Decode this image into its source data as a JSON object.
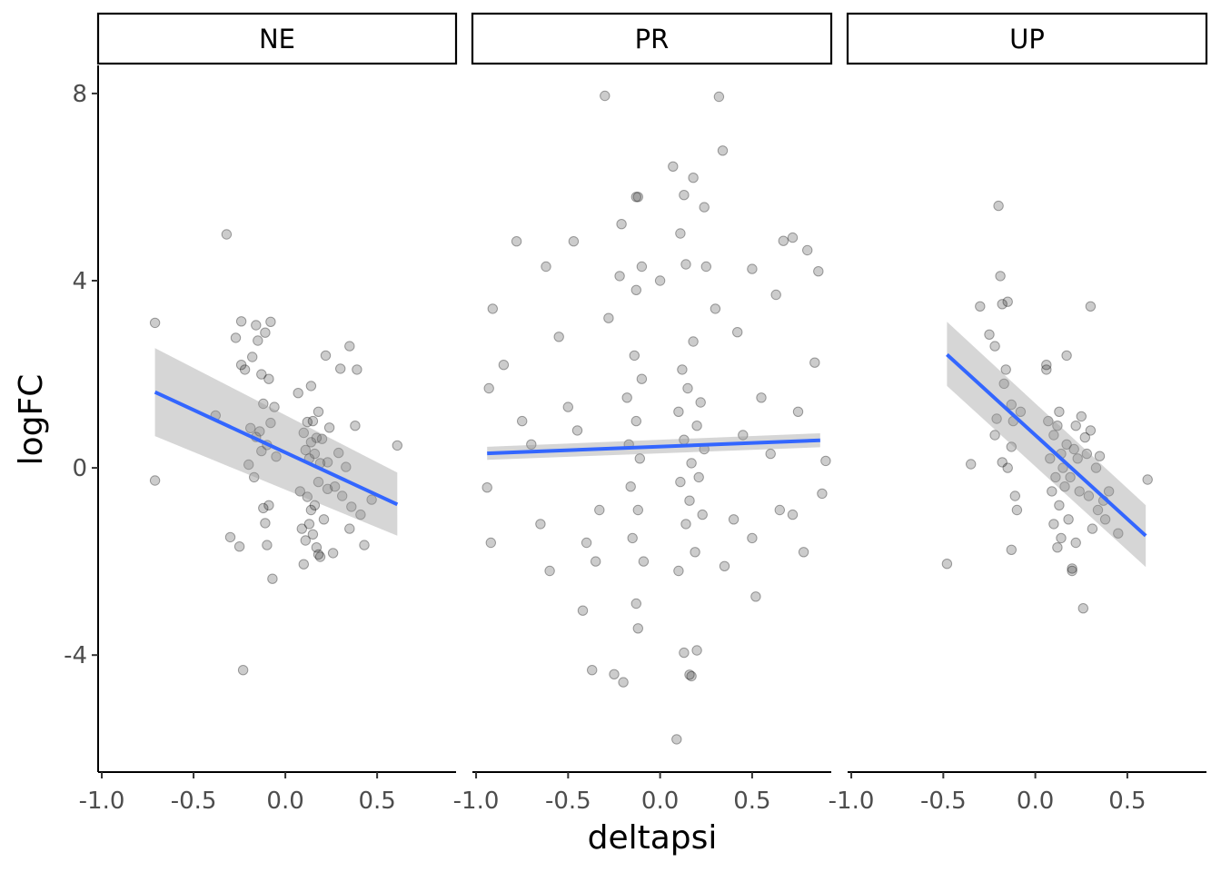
{
  "chart_data": {
    "type": "scatter",
    "xlabel": "deltapsi",
    "ylabel": "logFC",
    "xlim": [
      -1.02,
      0.93
    ],
    "ylim": [
      -6.5,
      8.6
    ],
    "x_ticks": [
      -1.0,
      -0.5,
      0.0,
      0.5
    ],
    "x_tick_labels": [
      "-1.0",
      "-0.5",
      "0.0",
      "0.5"
    ],
    "y_ticks": [
      8,
      4,
      0,
      -4
    ],
    "y_tick_labels": [
      "8",
      "4",
      "0",
      "-4"
    ],
    "point_color": "#000000",
    "point_alpha": 0.2,
    "fit_color": "#3366ff",
    "band_color": "#999999",
    "grid": false,
    "facets": [
      {
        "label": "NE",
        "points": [
          [
            -0.71,
            3.1
          ],
          [
            -0.71,
            -0.27
          ],
          [
            -0.38,
            1.12
          ],
          [
            -0.32,
            4.99
          ],
          [
            -0.3,
            -1.48
          ],
          [
            -0.27,
            2.78
          ],
          [
            -0.25,
            -1.68
          ],
          [
            -0.24,
            3.13
          ],
          [
            -0.24,
            2.2
          ],
          [
            -0.23,
            -4.32
          ],
          [
            -0.22,
            2.1
          ],
          [
            -0.2,
            0.07
          ],
          [
            -0.19,
            0.85
          ],
          [
            -0.18,
            2.37
          ],
          [
            -0.17,
            -0.2
          ],
          [
            -0.16,
            3.05
          ],
          [
            -0.16,
            0.66
          ],
          [
            -0.15,
            2.72
          ],
          [
            -0.14,
            0.78
          ],
          [
            -0.13,
            0.36
          ],
          [
            -0.13,
            2.0
          ],
          [
            -0.12,
            -0.86
          ],
          [
            -0.12,
            1.37
          ],
          [
            -0.11,
            2.89
          ],
          [
            -0.11,
            -1.18
          ],
          [
            -0.1,
            0.49
          ],
          [
            -0.1,
            -1.65
          ],
          [
            -0.09,
            1.9
          ],
          [
            -0.09,
            -0.8
          ],
          [
            -0.08,
            3.12
          ],
          [
            -0.08,
            0.96
          ],
          [
            -0.07,
            -2.37
          ],
          [
            -0.06,
            1.3
          ],
          [
            -0.05,
            0.24
          ],
          [
            0.07,
            1.6
          ],
          [
            0.08,
            -0.5
          ],
          [
            0.09,
            -1.3
          ],
          [
            0.1,
            0.75
          ],
          [
            0.1,
            -2.06
          ],
          [
            0.11,
            0.38
          ],
          [
            0.11,
            -1.55
          ],
          [
            0.12,
            0.98
          ],
          [
            0.12,
            -0.62
          ],
          [
            0.13,
            0.2
          ],
          [
            0.13,
            -1.2
          ],
          [
            0.14,
            0.55
          ],
          [
            0.14,
            -0.9
          ],
          [
            0.15,
            1.0
          ],
          [
            0.15,
            -1.42
          ],
          [
            0.16,
            0.3
          ],
          [
            0.16,
            -0.8
          ],
          [
            0.17,
            0.64
          ],
          [
            0.17,
            -1.7
          ],
          [
            0.18,
            1.2
          ],
          [
            0.18,
            -0.3
          ],
          [
            0.19,
            0.1
          ],
          [
            0.19,
            -1.9
          ],
          [
            0.2,
            0.62
          ],
          [
            0.21,
            -1.1
          ],
          [
            0.22,
            2.4
          ],
          [
            0.23,
            0.12
          ],
          [
            0.23,
            -0.45
          ],
          [
            0.24,
            0.86
          ],
          [
            0.26,
            -1.82
          ],
          [
            0.27,
            -0.4
          ],
          [
            0.29,
            0.32
          ],
          [
            0.3,
            2.12
          ],
          [
            0.31,
            -0.6
          ],
          [
            0.33,
            0.02
          ],
          [
            0.35,
            -1.3
          ],
          [
            0.35,
            2.6
          ],
          [
            0.36,
            -0.83
          ],
          [
            0.38,
            0.9
          ],
          [
            0.39,
            2.1
          ],
          [
            0.41,
            -1.0
          ],
          [
            0.43,
            -1.65
          ],
          [
            0.47,
            -0.68
          ],
          [
            0.61,
            0.48
          ],
          [
            0.18,
            -1.85
          ],
          [
            0.14,
            1.75
          ]
        ],
        "fit": {
          "x": [
            -0.71,
            0.61
          ],
          "y": [
            1.62,
            -0.78
          ],
          "lower": [
            0.68,
            -1.45
          ],
          "upper": [
            2.56,
            -0.1
          ]
        }
      },
      {
        "label": "PR",
        "points": [
          [
            -0.3,
            7.95
          ],
          [
            0.32,
            7.93
          ],
          [
            0.34,
            6.78
          ],
          [
            0.07,
            6.44
          ],
          [
            0.18,
            6.2
          ],
          [
            0.13,
            5.83
          ],
          [
            -0.13,
            5.79
          ],
          [
            -0.12,
            5.79
          ],
          [
            0.24,
            5.57
          ],
          [
            -0.21,
            5.21
          ],
          [
            0.11,
            5.01
          ],
          [
            -0.78,
            4.84
          ],
          [
            -0.47,
            4.84
          ],
          [
            0.72,
            4.92
          ],
          [
            0.67,
            4.85
          ],
          [
            0.8,
            4.65
          ],
          [
            -0.62,
            4.3
          ],
          [
            -0.22,
            4.1
          ],
          [
            0.25,
            4.3
          ],
          [
            0.5,
            4.25
          ],
          [
            0.86,
            4.2
          ],
          [
            -0.91,
            3.4
          ],
          [
            0.63,
            3.7
          ],
          [
            -0.1,
            4.3
          ],
          [
            0.14,
            4.35
          ],
          [
            0.0,
            4.0
          ],
          [
            -0.13,
            3.8
          ],
          [
            -0.85,
            2.2
          ],
          [
            -0.93,
            1.7
          ],
          [
            0.84,
            2.25
          ],
          [
            0.9,
            0.15
          ],
          [
            0.88,
            -0.55
          ],
          [
            -0.94,
            -0.42
          ],
          [
            -0.92,
            -1.6
          ],
          [
            0.72,
            -1.0
          ],
          [
            0.78,
            -1.8
          ],
          [
            -0.42,
            -3.05
          ],
          [
            -0.37,
            -4.32
          ],
          [
            -0.25,
            -4.41
          ],
          [
            -0.2,
            -4.58
          ],
          [
            0.16,
            -4.42
          ],
          [
            0.2,
            -3.9
          ],
          [
            -0.12,
            -3.43
          ],
          [
            0.13,
            -3.95
          ],
          [
            0.17,
            -4.45
          ],
          [
            0.09,
            -5.8
          ],
          [
            -0.13,
            -2.9
          ],
          [
            0.1,
            -2.2
          ],
          [
            -0.6,
            -2.2
          ],
          [
            0.52,
            -2.75
          ],
          [
            -0.55,
            2.8
          ],
          [
            0.42,
            2.9
          ],
          [
            -0.33,
            -0.9
          ],
          [
            0.4,
            -1.1
          ],
          [
            -0.5,
            1.3
          ],
          [
            0.55,
            1.5
          ],
          [
            -0.7,
            0.5
          ],
          [
            0.6,
            0.3
          ],
          [
            -0.35,
            -2.0
          ],
          [
            0.35,
            -2.1
          ],
          [
            -0.18,
            1.5
          ],
          [
            -0.17,
            0.5
          ],
          [
            -0.16,
            -0.4
          ],
          [
            -0.15,
            -1.5
          ],
          [
            -0.14,
            2.4
          ],
          [
            -0.13,
            1.0
          ],
          [
            -0.12,
            -0.9
          ],
          [
            -0.11,
            0.2
          ],
          [
            -0.1,
            1.9
          ],
          [
            -0.09,
            -2.0
          ],
          [
            0.1,
            1.2
          ],
          [
            0.11,
            -0.3
          ],
          [
            0.12,
            2.1
          ],
          [
            0.13,
            0.6
          ],
          [
            0.14,
            -1.2
          ],
          [
            0.15,
            1.7
          ],
          [
            0.16,
            -0.7
          ],
          [
            0.17,
            0.1
          ],
          [
            0.18,
            2.7
          ],
          [
            0.19,
            -1.8
          ],
          [
            0.2,
            0.9
          ],
          [
            0.21,
            -0.2
          ],
          [
            0.22,
            1.4
          ],
          [
            0.23,
            -1.0
          ],
          [
            0.24,
            0.4
          ],
          [
            -0.45,
            0.8
          ],
          [
            0.45,
            0.7
          ],
          [
            -0.65,
            -1.2
          ],
          [
            0.65,
            -0.9
          ],
          [
            -0.28,
            3.2
          ],
          [
            0.3,
            3.4
          ],
          [
            -0.75,
            1.0
          ],
          [
            0.75,
            1.2
          ],
          [
            -0.4,
            -1.6
          ],
          [
            0.5,
            -1.5
          ]
        ],
        "fit": {
          "x": [
            -0.94,
            0.87
          ],
          "y": [
            0.31,
            0.59
          ],
          "lower": [
            0.17,
            0.44
          ],
          "upper": [
            0.45,
            0.74
          ]
        }
      },
      {
        "label": "UP",
        "points": [
          [
            -0.48,
            -2.05
          ],
          [
            -0.35,
            0.08
          ],
          [
            -0.3,
            3.45
          ],
          [
            -0.25,
            2.85
          ],
          [
            -0.22,
            2.6
          ],
          [
            -0.22,
            0.7
          ],
          [
            -0.21,
            1.05
          ],
          [
            -0.2,
            5.6
          ],
          [
            -0.19,
            4.1
          ],
          [
            -0.18,
            3.5
          ],
          [
            -0.18,
            0.12
          ],
          [
            -0.17,
            1.8
          ],
          [
            -0.16,
            2.1
          ],
          [
            -0.15,
            3.55
          ],
          [
            -0.15,
            0.0
          ],
          [
            -0.13,
            1.35
          ],
          [
            -0.13,
            0.45
          ],
          [
            -0.12,
            1.0
          ],
          [
            -0.11,
            -0.6
          ],
          [
            -0.1,
            -0.9
          ],
          [
            -0.13,
            -1.75
          ],
          [
            0.06,
            2.2
          ],
          [
            0.07,
            1.0
          ],
          [
            0.08,
            0.2
          ],
          [
            0.09,
            -0.5
          ],
          [
            0.1,
            0.7
          ],
          [
            0.1,
            -1.2
          ],
          [
            0.11,
            -0.2
          ],
          [
            0.12,
            0.9
          ],
          [
            0.13,
            -0.8
          ],
          [
            0.13,
            1.2
          ],
          [
            0.14,
            0.3
          ],
          [
            0.14,
            -1.5
          ],
          [
            0.15,
            0.0
          ],
          [
            0.16,
            -0.4
          ],
          [
            0.17,
            0.5
          ],
          [
            0.18,
            -1.1
          ],
          [
            0.19,
            -0.2
          ],
          [
            0.2,
            -2.15
          ],
          [
            0.21,
            0.4
          ],
          [
            0.22,
            -1.6
          ],
          [
            0.22,
            0.9
          ],
          [
            0.23,
            0.2
          ],
          [
            0.24,
            -0.5
          ],
          [
            0.25,
            1.1
          ],
          [
            0.26,
            -3.0
          ],
          [
            0.27,
            0.65
          ],
          [
            0.28,
            0.3
          ],
          [
            0.29,
            -0.6
          ],
          [
            0.3,
            0.8
          ],
          [
            0.3,
            3.45
          ],
          [
            0.31,
            -1.3
          ],
          [
            0.33,
            0.0
          ],
          [
            0.34,
            -0.9
          ],
          [
            0.35,
            0.25
          ],
          [
            0.37,
            -0.7
          ],
          [
            0.38,
            -1.1
          ],
          [
            0.4,
            -0.5
          ],
          [
            0.45,
            -1.4
          ],
          [
            0.61,
            -0.25
          ],
          [
            0.17,
            2.4
          ],
          [
            0.06,
            2.1
          ],
          [
            0.12,
            -1.7
          ],
          [
            0.2,
            -2.2
          ],
          [
            -0.08,
            1.2
          ]
        ],
        "fit": {
          "x": [
            -0.48,
            0.6
          ],
          "y": [
            2.42,
            -1.45
          ],
          "lower": [
            1.75,
            -2.12
          ],
          "upper": [
            3.12,
            -0.8
          ]
        }
      }
    ]
  }
}
